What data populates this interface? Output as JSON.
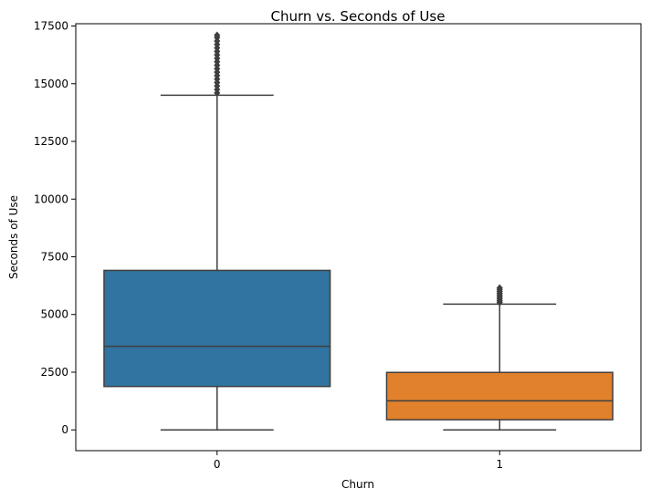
{
  "chart_data": {
    "type": "box",
    "title": "Churn vs. Seconds of Use",
    "xlabel": "Churn",
    "ylabel": "Seconds of Use",
    "categories": [
      "0",
      "1"
    ],
    "ylim": [
      -900,
      17600
    ],
    "yticks": [
      0,
      2500,
      5000,
      7500,
      10000,
      12500,
      15000,
      17500
    ],
    "ytick_labels": [
      "0",
      "2500",
      "5000",
      "7500",
      "10000",
      "12500",
      "15000",
      "17500"
    ],
    "boxes": [
      {
        "category": "0",
        "color": "#3274a1",
        "whisker_low": 0,
        "q1": 1880,
        "median": 3620,
        "q3": 6910,
        "whisker_high": 14500,
        "outliers": [
          14600,
          14750,
          14900,
          15050,
          15200,
          15350,
          15500,
          15650,
          15800,
          15950,
          16100,
          16250,
          16400,
          16550,
          16700,
          16850,
          17000,
          17100
        ]
      },
      {
        "category": "1",
        "color": "#e1812c",
        "whisker_low": 0,
        "q1": 440,
        "median": 1260,
        "q3": 2490,
        "whisker_high": 5450,
        "outliers": [
          5520,
          5600,
          5680,
          5760,
          5840,
          5920,
          6000,
          6080,
          6150
        ]
      }
    ],
    "grid": false,
    "legend": "none"
  }
}
